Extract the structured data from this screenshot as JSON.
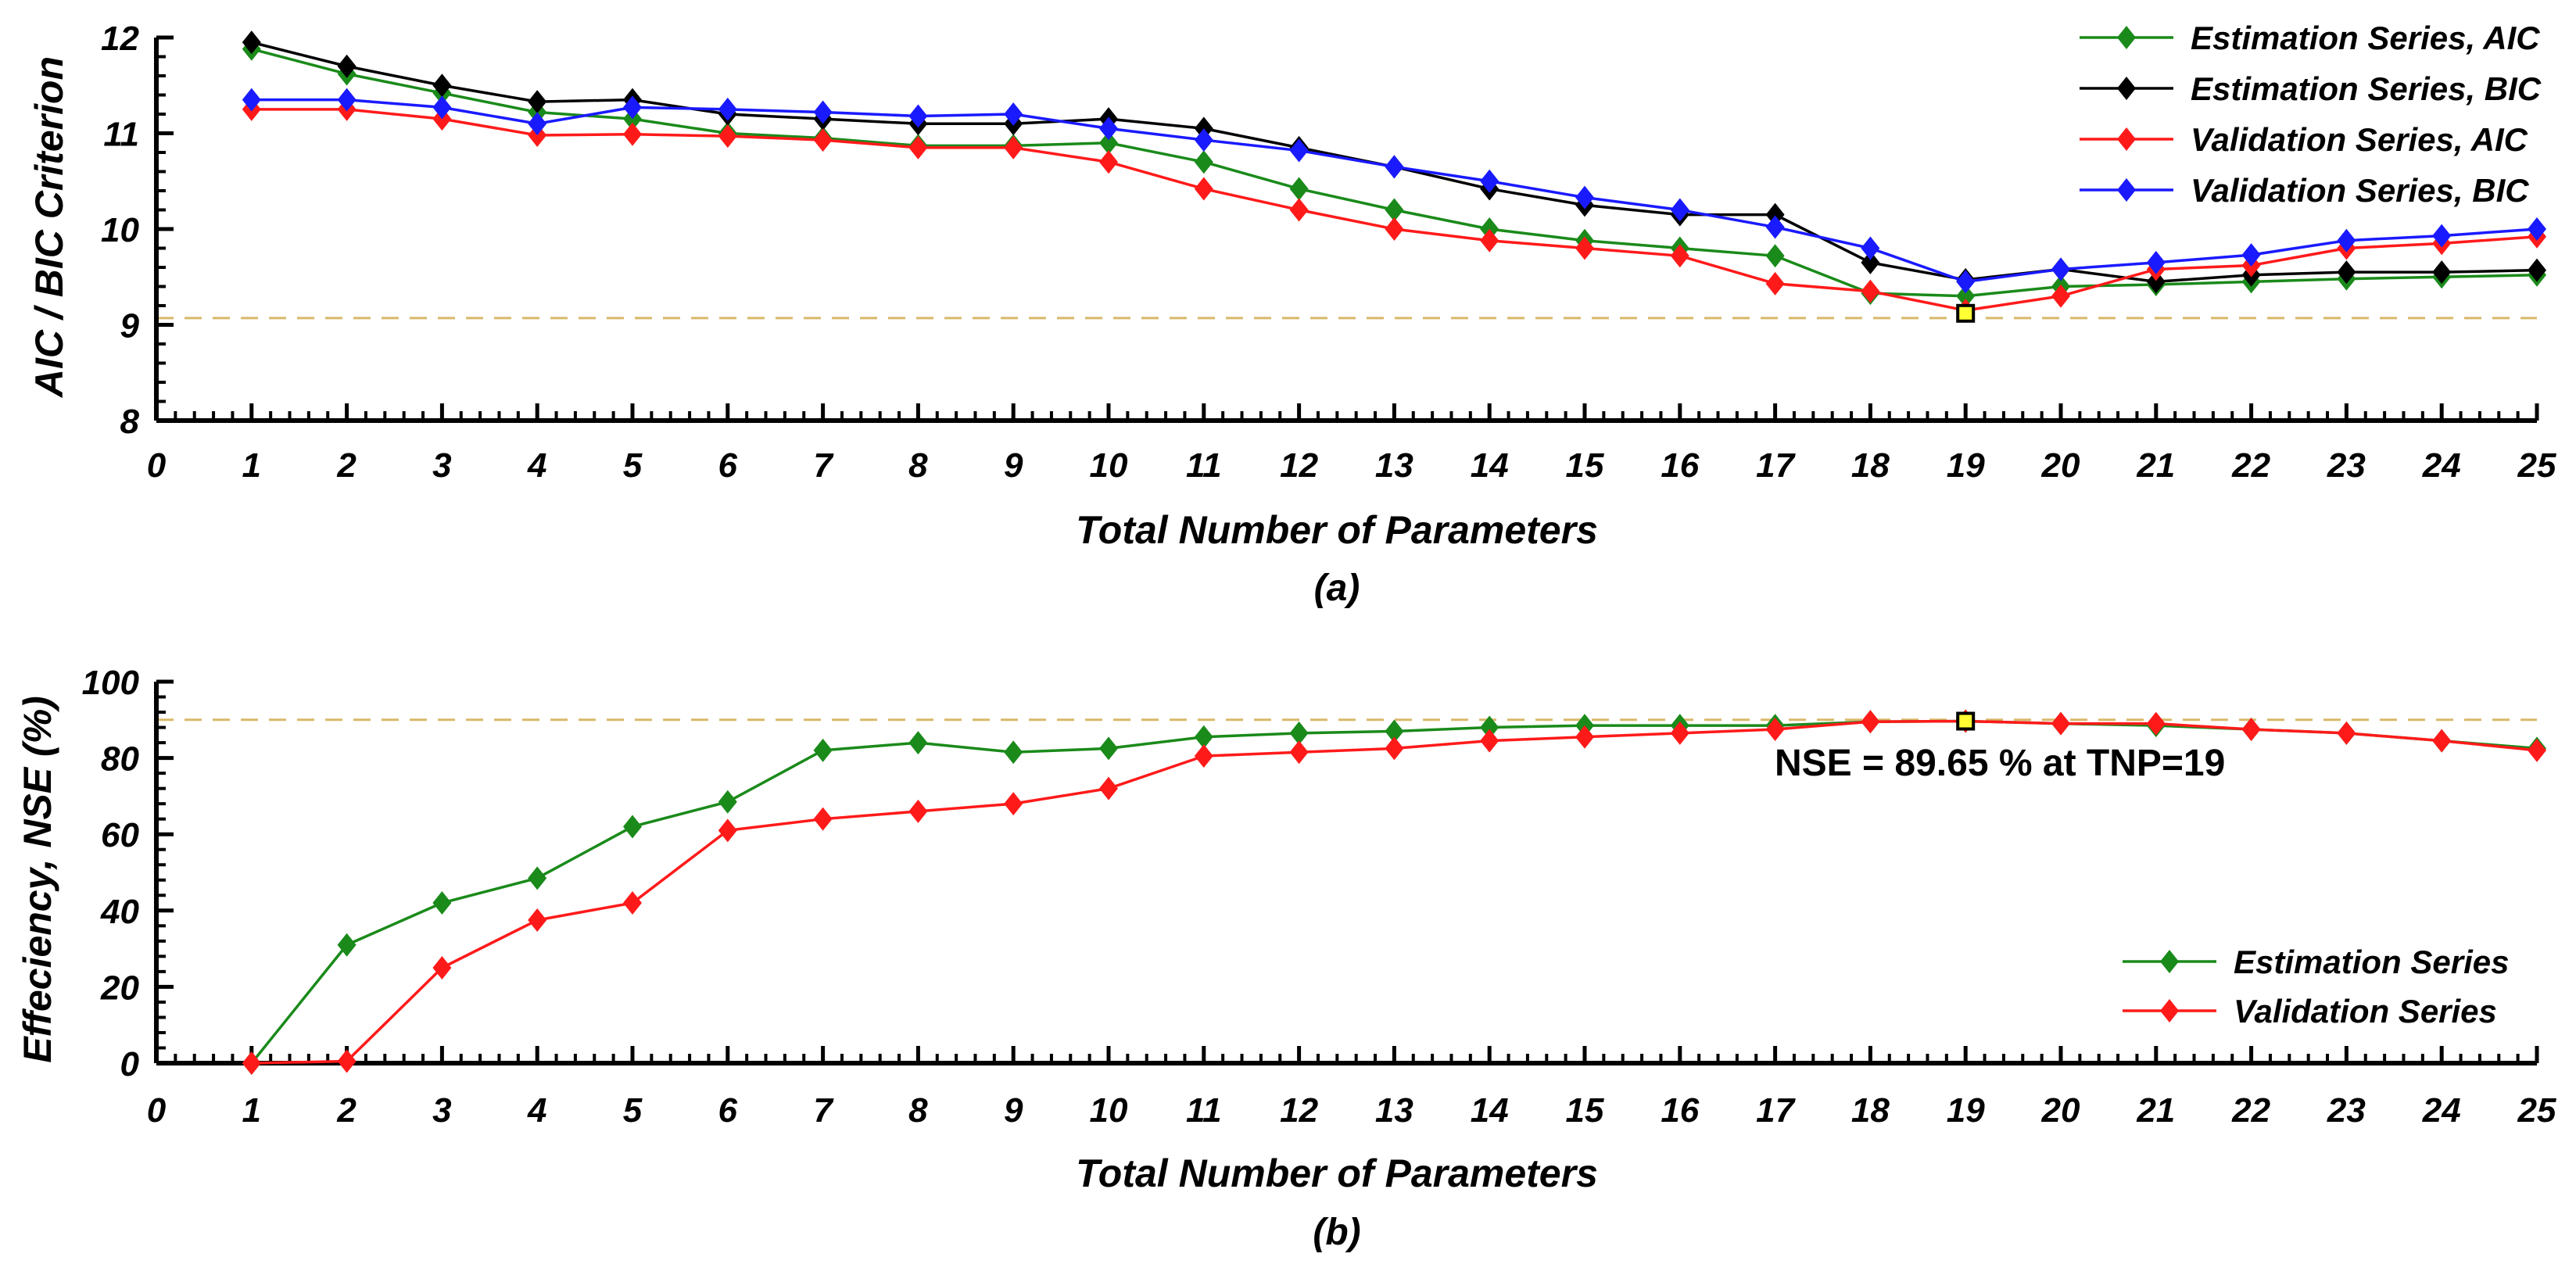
{
  "chart_data": [
    {
      "type": "line",
      "caption": "(a)",
      "xlabel": "Total Number of Parameters",
      "ylabel": "AIC / BIC  Criterion",
      "xlim": [
        0,
        25
      ],
      "ylim": [
        8,
        12
      ],
      "xticks": [
        0,
        1,
        2,
        3,
        4,
        5,
        6,
        7,
        8,
        9,
        10,
        11,
        12,
        13,
        14,
        15,
        16,
        17,
        18,
        19,
        20,
        21,
        22,
        23,
        24,
        25
      ],
      "yticks": [
        8,
        9,
        10,
        11,
        12
      ],
      "legend_position": "top-right",
      "reference_line": {
        "y": 9.07,
        "color": "#d8b86a",
        "style": "dashed"
      },
      "marker_point": {
        "x": 19,
        "y": 9.12
      },
      "x": [
        1,
        2,
        3,
        4,
        5,
        6,
        7,
        8,
        9,
        10,
        11,
        12,
        13,
        14,
        15,
        16,
        17,
        18,
        19,
        20,
        21,
        22,
        23,
        24,
        25
      ],
      "series": [
        {
          "name": "Estimation Series, AIC",
          "color": "#1a8a1a",
          "values": [
            11.88,
            11.62,
            11.42,
            11.22,
            11.15,
            11.0,
            10.95,
            10.87,
            10.87,
            10.9,
            10.7,
            10.42,
            10.2,
            10.0,
            9.88,
            9.8,
            9.72,
            9.33,
            9.3,
            9.4,
            9.42,
            9.45,
            9.48,
            9.5,
            9.52
          ]
        },
        {
          "name": "Estimation Series, BIC",
          "color": "#000000",
          "values": [
            11.95,
            11.7,
            11.5,
            11.33,
            11.35,
            11.2,
            11.15,
            11.1,
            11.1,
            11.15,
            11.05,
            10.85,
            10.65,
            10.42,
            10.25,
            10.15,
            10.15,
            9.65,
            9.47,
            9.58,
            9.45,
            9.52,
            9.55,
            9.55,
            9.57
          ]
        },
        {
          "name": "Validation Series, AIC",
          "color": "#ff1a1a",
          "values": [
            11.25,
            11.25,
            11.15,
            10.98,
            10.99,
            10.97,
            10.93,
            10.85,
            10.85,
            10.7,
            10.42,
            10.2,
            10.0,
            9.88,
            9.8,
            9.72,
            9.43,
            9.35,
            9.15,
            9.3,
            9.58,
            9.62,
            9.8,
            9.85,
            9.92
          ]
        },
        {
          "name": "Validation Series, BIC",
          "color": "#1a1aff",
          "values": [
            11.35,
            11.35,
            11.27,
            11.1,
            11.27,
            11.25,
            11.22,
            11.18,
            11.2,
            11.05,
            10.93,
            10.82,
            10.65,
            10.5,
            10.33,
            10.2,
            10.02,
            9.8,
            9.45,
            9.58,
            9.65,
            9.73,
            9.88,
            9.93,
            10.0
          ]
        }
      ]
    },
    {
      "type": "line",
      "caption": "(b)",
      "xlabel": "Total Number of Parameters",
      "ylabel": "Effeciency, NSE (%)",
      "xlim": [
        0,
        25
      ],
      "ylim": [
        0,
        100
      ],
      "xticks": [
        0,
        1,
        2,
        3,
        4,
        5,
        6,
        7,
        8,
        9,
        10,
        11,
        12,
        13,
        14,
        15,
        16,
        17,
        18,
        19,
        20,
        21,
        22,
        23,
        24,
        25
      ],
      "yticks": [
        0,
        20,
        40,
        60,
        80,
        100
      ],
      "legend_position": "bottom-right",
      "reference_line": {
        "y": 90,
        "color": "#d8b86a",
        "style": "dashed"
      },
      "marker_point": {
        "x": 19,
        "y": 89.65
      },
      "annotation": "NSE = 89.65 %  at TNP=19",
      "x": [
        1,
        2,
        3,
        4,
        5,
        6,
        7,
        8,
        9,
        10,
        11,
        12,
        13,
        14,
        15,
        16,
        17,
        18,
        19,
        20,
        21,
        22,
        23,
        24,
        25
      ],
      "series": [
        {
          "name": "Estimation Series",
          "color": "#1a8a1a",
          "values": [
            0,
            31,
            42,
            48.5,
            62,
            68.5,
            82,
            84,
            81.5,
            82.5,
            85.5,
            86.5,
            87,
            88,
            88.5,
            88.5,
            88.5,
            89.5,
            89.65,
            89,
            88.5,
            87.5,
            86.5,
            84.5,
            82.5
          ]
        },
        {
          "name": "Validation Series",
          "color": "#ff1a1a",
          "values": [
            0,
            0.5,
            25,
            37.5,
            42,
            61,
            64,
            66,
            68,
            72,
            80.5,
            81.5,
            82.5,
            84.5,
            85.5,
            86.5,
            87.5,
            89.5,
            89.65,
            89,
            89,
            87.5,
            86.5,
            84.5,
            82
          ]
        }
      ]
    }
  ]
}
